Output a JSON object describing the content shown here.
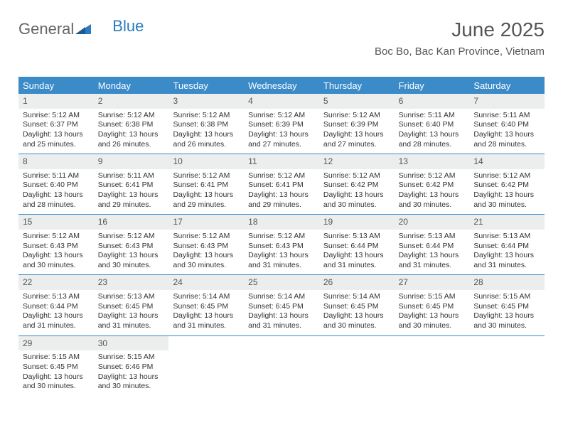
{
  "brand": {
    "part1": "General",
    "part2": "Blue"
  },
  "header": {
    "title": "June 2025",
    "location": "Boc Bo, Bac Kan Province, Vietnam"
  },
  "colors": {
    "header_bg": "#3b8bc9",
    "header_text": "#ffffff",
    "daynum_bg": "#eceded",
    "text": "#333333",
    "title_text": "#555555",
    "brand_blue": "#2b7bbf",
    "border": "#3b8bc9"
  },
  "typography": {
    "title_fontsize": 28,
    "location_fontsize": 15,
    "dayheader_fontsize": 13,
    "daynum_fontsize": 12,
    "body_fontsize": 10.5
  },
  "day_names": [
    "Sunday",
    "Monday",
    "Tuesday",
    "Wednesday",
    "Thursday",
    "Friday",
    "Saturday"
  ],
  "weeks": [
    [
      {
        "num": "1",
        "sunrise": "Sunrise: 5:12 AM",
        "sunset": "Sunset: 6:37 PM",
        "daylight1": "Daylight: 13 hours",
        "daylight2": "and 25 minutes."
      },
      {
        "num": "2",
        "sunrise": "Sunrise: 5:12 AM",
        "sunset": "Sunset: 6:38 PM",
        "daylight1": "Daylight: 13 hours",
        "daylight2": "and 26 minutes."
      },
      {
        "num": "3",
        "sunrise": "Sunrise: 5:12 AM",
        "sunset": "Sunset: 6:38 PM",
        "daylight1": "Daylight: 13 hours",
        "daylight2": "and 26 minutes."
      },
      {
        "num": "4",
        "sunrise": "Sunrise: 5:12 AM",
        "sunset": "Sunset: 6:39 PM",
        "daylight1": "Daylight: 13 hours",
        "daylight2": "and 27 minutes."
      },
      {
        "num": "5",
        "sunrise": "Sunrise: 5:12 AM",
        "sunset": "Sunset: 6:39 PM",
        "daylight1": "Daylight: 13 hours",
        "daylight2": "and 27 minutes."
      },
      {
        "num": "6",
        "sunrise": "Sunrise: 5:11 AM",
        "sunset": "Sunset: 6:40 PM",
        "daylight1": "Daylight: 13 hours",
        "daylight2": "and 28 minutes."
      },
      {
        "num": "7",
        "sunrise": "Sunrise: 5:11 AM",
        "sunset": "Sunset: 6:40 PM",
        "daylight1": "Daylight: 13 hours",
        "daylight2": "and 28 minutes."
      }
    ],
    [
      {
        "num": "8",
        "sunrise": "Sunrise: 5:11 AM",
        "sunset": "Sunset: 6:40 PM",
        "daylight1": "Daylight: 13 hours",
        "daylight2": "and 28 minutes."
      },
      {
        "num": "9",
        "sunrise": "Sunrise: 5:11 AM",
        "sunset": "Sunset: 6:41 PM",
        "daylight1": "Daylight: 13 hours",
        "daylight2": "and 29 minutes."
      },
      {
        "num": "10",
        "sunrise": "Sunrise: 5:12 AM",
        "sunset": "Sunset: 6:41 PM",
        "daylight1": "Daylight: 13 hours",
        "daylight2": "and 29 minutes."
      },
      {
        "num": "11",
        "sunrise": "Sunrise: 5:12 AM",
        "sunset": "Sunset: 6:41 PM",
        "daylight1": "Daylight: 13 hours",
        "daylight2": "and 29 minutes."
      },
      {
        "num": "12",
        "sunrise": "Sunrise: 5:12 AM",
        "sunset": "Sunset: 6:42 PM",
        "daylight1": "Daylight: 13 hours",
        "daylight2": "and 30 minutes."
      },
      {
        "num": "13",
        "sunrise": "Sunrise: 5:12 AM",
        "sunset": "Sunset: 6:42 PM",
        "daylight1": "Daylight: 13 hours",
        "daylight2": "and 30 minutes."
      },
      {
        "num": "14",
        "sunrise": "Sunrise: 5:12 AM",
        "sunset": "Sunset: 6:42 PM",
        "daylight1": "Daylight: 13 hours",
        "daylight2": "and 30 minutes."
      }
    ],
    [
      {
        "num": "15",
        "sunrise": "Sunrise: 5:12 AM",
        "sunset": "Sunset: 6:43 PM",
        "daylight1": "Daylight: 13 hours",
        "daylight2": "and 30 minutes."
      },
      {
        "num": "16",
        "sunrise": "Sunrise: 5:12 AM",
        "sunset": "Sunset: 6:43 PM",
        "daylight1": "Daylight: 13 hours",
        "daylight2": "and 30 minutes."
      },
      {
        "num": "17",
        "sunrise": "Sunrise: 5:12 AM",
        "sunset": "Sunset: 6:43 PM",
        "daylight1": "Daylight: 13 hours",
        "daylight2": "and 30 minutes."
      },
      {
        "num": "18",
        "sunrise": "Sunrise: 5:12 AM",
        "sunset": "Sunset: 6:43 PM",
        "daylight1": "Daylight: 13 hours",
        "daylight2": "and 31 minutes."
      },
      {
        "num": "19",
        "sunrise": "Sunrise: 5:13 AM",
        "sunset": "Sunset: 6:44 PM",
        "daylight1": "Daylight: 13 hours",
        "daylight2": "and 31 minutes."
      },
      {
        "num": "20",
        "sunrise": "Sunrise: 5:13 AM",
        "sunset": "Sunset: 6:44 PM",
        "daylight1": "Daylight: 13 hours",
        "daylight2": "and 31 minutes."
      },
      {
        "num": "21",
        "sunrise": "Sunrise: 5:13 AM",
        "sunset": "Sunset: 6:44 PM",
        "daylight1": "Daylight: 13 hours",
        "daylight2": "and 31 minutes."
      }
    ],
    [
      {
        "num": "22",
        "sunrise": "Sunrise: 5:13 AM",
        "sunset": "Sunset: 6:44 PM",
        "daylight1": "Daylight: 13 hours",
        "daylight2": "and 31 minutes."
      },
      {
        "num": "23",
        "sunrise": "Sunrise: 5:13 AM",
        "sunset": "Sunset: 6:45 PM",
        "daylight1": "Daylight: 13 hours",
        "daylight2": "and 31 minutes."
      },
      {
        "num": "24",
        "sunrise": "Sunrise: 5:14 AM",
        "sunset": "Sunset: 6:45 PM",
        "daylight1": "Daylight: 13 hours",
        "daylight2": "and 31 minutes."
      },
      {
        "num": "25",
        "sunrise": "Sunrise: 5:14 AM",
        "sunset": "Sunset: 6:45 PM",
        "daylight1": "Daylight: 13 hours",
        "daylight2": "and 31 minutes."
      },
      {
        "num": "26",
        "sunrise": "Sunrise: 5:14 AM",
        "sunset": "Sunset: 6:45 PM",
        "daylight1": "Daylight: 13 hours",
        "daylight2": "and 30 minutes."
      },
      {
        "num": "27",
        "sunrise": "Sunrise: 5:15 AM",
        "sunset": "Sunset: 6:45 PM",
        "daylight1": "Daylight: 13 hours",
        "daylight2": "and 30 minutes."
      },
      {
        "num": "28",
        "sunrise": "Sunrise: 5:15 AM",
        "sunset": "Sunset: 6:45 PM",
        "daylight1": "Daylight: 13 hours",
        "daylight2": "and 30 minutes."
      }
    ],
    [
      {
        "num": "29",
        "sunrise": "Sunrise: 5:15 AM",
        "sunset": "Sunset: 6:45 PM",
        "daylight1": "Daylight: 13 hours",
        "daylight2": "and 30 minutes."
      },
      {
        "num": "30",
        "sunrise": "Sunrise: 5:15 AM",
        "sunset": "Sunset: 6:46 PM",
        "daylight1": "Daylight: 13 hours",
        "daylight2": "and 30 minutes."
      },
      {
        "empty": true
      },
      {
        "empty": true
      },
      {
        "empty": true
      },
      {
        "empty": true
      },
      {
        "empty": true
      }
    ]
  ]
}
